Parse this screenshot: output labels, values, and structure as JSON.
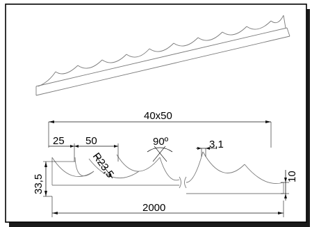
{
  "drawing": {
    "labels": {
      "size": "40x50",
      "pitch": "25",
      "width": "50",
      "radius": "R23,5",
      "angle": "90º",
      "thickness": "3,1",
      "height": "33,5",
      "tip_height": "10",
      "length": "2000"
    }
  }
}
